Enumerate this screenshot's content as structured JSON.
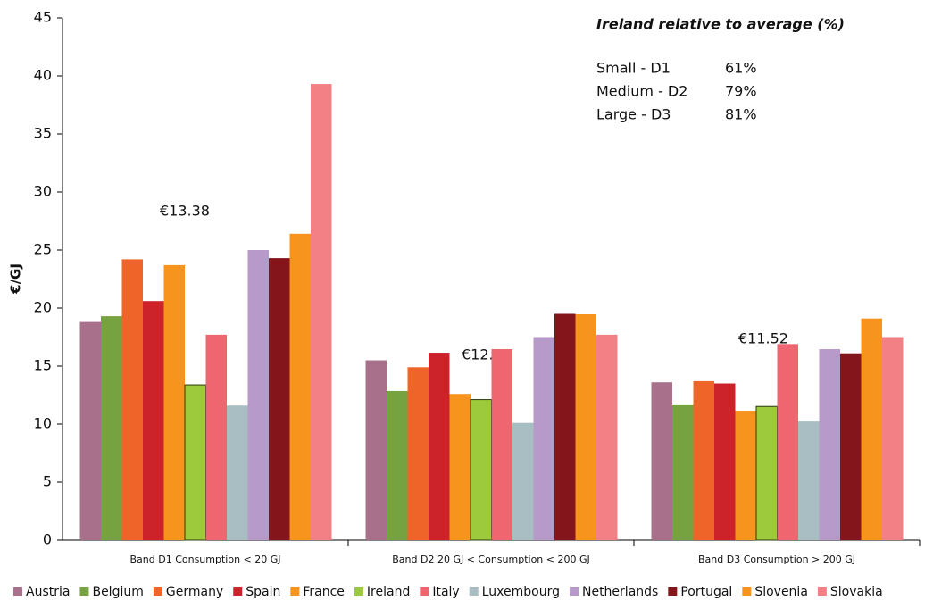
{
  "chart_data": {
    "type": "bar",
    "y_label": "€/GJ",
    "categories": [
      "Band D1  Consumption < 20 GJ",
      "Band D2  20 GJ < Consumption < 200 GJ",
      "Band D3  Consumption > 200 GJ"
    ],
    "series": [
      {
        "name": "Austria",
        "color": "#a8708a",
        "values": [
          18.8,
          15.5,
          13.6
        ]
      },
      {
        "name": "Belgium",
        "color": "#76a33f",
        "values": [
          19.3,
          12.85,
          11.7
        ]
      },
      {
        "name": "Germany",
        "color": "#ee6429",
        "values": [
          24.2,
          14.9,
          13.7
        ]
      },
      {
        "name": "Spain",
        "color": "#cc2229",
        "values": [
          20.6,
          16.15,
          13.5
        ]
      },
      {
        "name": "France",
        "color": "#f7941d",
        "values": [
          23.7,
          12.6,
          11.15
        ]
      },
      {
        "name": "Ireland",
        "color": "#9dc93c",
        "values": [
          13.38,
          12.11,
          11.52
        ],
        "value_labels": [
          "€13.38",
          "€12.11",
          "€11.52"
        ]
      },
      {
        "name": "Italy",
        "color": "#ef6670",
        "values": [
          17.7,
          16.46,
          16.9
        ]
      },
      {
        "name": "Luxembourg",
        "color": "#a9bec3",
        "values": [
          11.6,
          10.1,
          10.3
        ]
      },
      {
        "name": "Netherlands",
        "color": "#b79ac9",
        "values": [
          25.0,
          17.5,
          16.46
        ]
      },
      {
        "name": "Portugal",
        "color": "#84151a",
        "values": [
          24.3,
          19.5,
          16.1
        ]
      },
      {
        "name": "Slovenia",
        "color": "#f7941d",
        "values": [
          26.4,
          19.46,
          19.1
        ]
      },
      {
        "name": "Slovakia",
        "color": "#f28085",
        "values": [
          39.3,
          17.7,
          17.5
        ]
      }
    ],
    "ylim": [
      0,
      45
    ],
    "yticks": [
      0,
      5,
      10,
      15,
      20,
      25,
      30,
      35,
      40,
      45
    ],
    "grid": false,
    "legend": "bottom",
    "inset": {
      "title": "Ireland relative to average (%)",
      "rows": [
        [
          "Small - D1",
          "61%"
        ],
        [
          "Medium - D2",
          "79%"
        ],
        [
          "Large - D3",
          "81%"
        ]
      ]
    }
  }
}
